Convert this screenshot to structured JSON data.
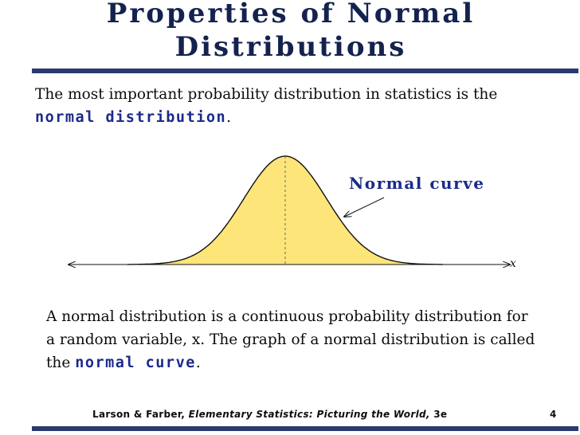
{
  "slide": {
    "title": "Properties of Normal Distributions",
    "intro_before": "The most important probability distribution in statistics is the ",
    "intro_emph": "normal distribution",
    "intro_after": ".",
    "body_before": "A normal distribution is a continuous probability distribution for a random variable, x.  The graph of a normal distribution is called the ",
    "body_emph": "normal curve",
    "body_after": ".",
    "footer_authors": "Larson & Farber, ",
    "footer_book": "Elementary Statistics: Picturing the World,",
    "footer_edition": " 3e",
    "page_number": "4"
  },
  "figure": {
    "curve_label": "Normal curve",
    "axis_label": "x",
    "fill_color": "#fde57a",
    "line_color": "#111111",
    "text_color": "#1b2a8a"
  }
}
